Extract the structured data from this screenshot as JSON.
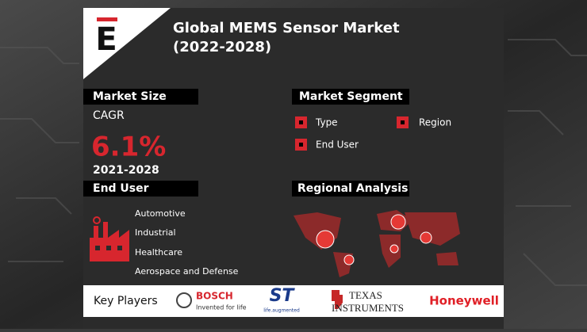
{
  "header": {
    "logo": "E",
    "title": [
      "Global MEMS Sensor Market",
      "(2022-2028)"
    ]
  },
  "market_size": {
    "heading": "Market Size",
    "metric": "CAGR",
    "value": "6.1%",
    "period": "2021-2028"
  },
  "market_segment": {
    "heading": "Market Segment",
    "items": [
      "Type",
      "Region",
      "End User"
    ]
  },
  "end_user": {
    "heading": "End User",
    "items": [
      "Automotive",
      "Industrial",
      "Healthcare",
      "Aerospace and Defense"
    ]
  },
  "regional_analysis": {
    "heading": "Regional Analysis"
  },
  "key_players": {
    "heading": "Key Players",
    "companies": [
      {
        "name": "BOSCH",
        "tagline": "Invented for life"
      },
      {
        "name": "ST",
        "tagline": "life.augmented"
      },
      {
        "name": "TEXAS",
        "tagline": "INSTRUMENTS"
      },
      {
        "name": "Honeywell"
      }
    ]
  }
}
